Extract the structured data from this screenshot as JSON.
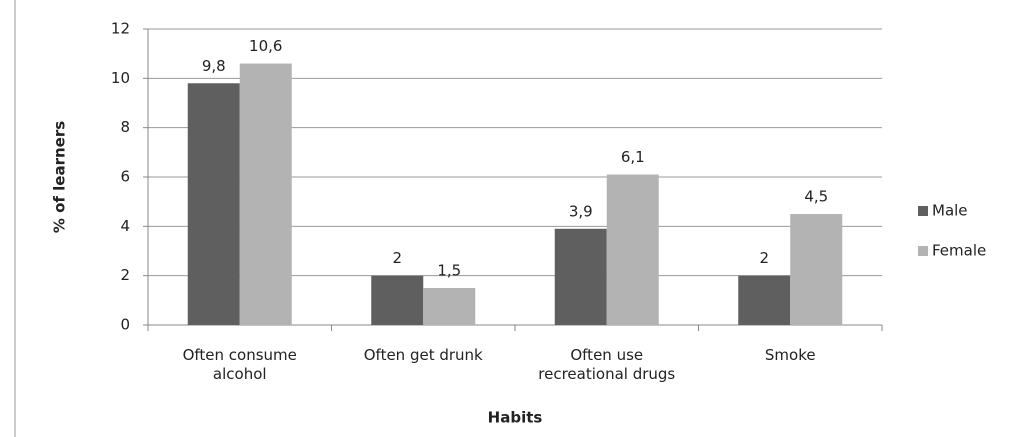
{
  "chart_data": {
    "type": "bar",
    "x_label": "Habits",
    "y_label": "% of learners",
    "categories": [
      "Often consume alcohol",
      "Often get drunk",
      "Often use recreational drugs",
      "Smoke"
    ],
    "series": [
      {
        "name": "Male",
        "color": "#5f5f5f",
        "values": [
          9.8,
          2,
          3.9,
          2
        ],
        "value_labels": [
          "9,8",
          "2",
          "3,9",
          "2"
        ]
      },
      {
        "name": "Female",
        "color": "#b3b3b3",
        "values": [
          10.6,
          1.5,
          6.1,
          4.5
        ],
        "value_labels": [
          "10,6",
          "1,5",
          "6,1",
          "4,5"
        ]
      }
    ],
    "ylim": [
      0,
      12
    ],
    "yticks": [
      0,
      2,
      4,
      6,
      8,
      10,
      12
    ],
    "grid": true,
    "legend": "right"
  }
}
